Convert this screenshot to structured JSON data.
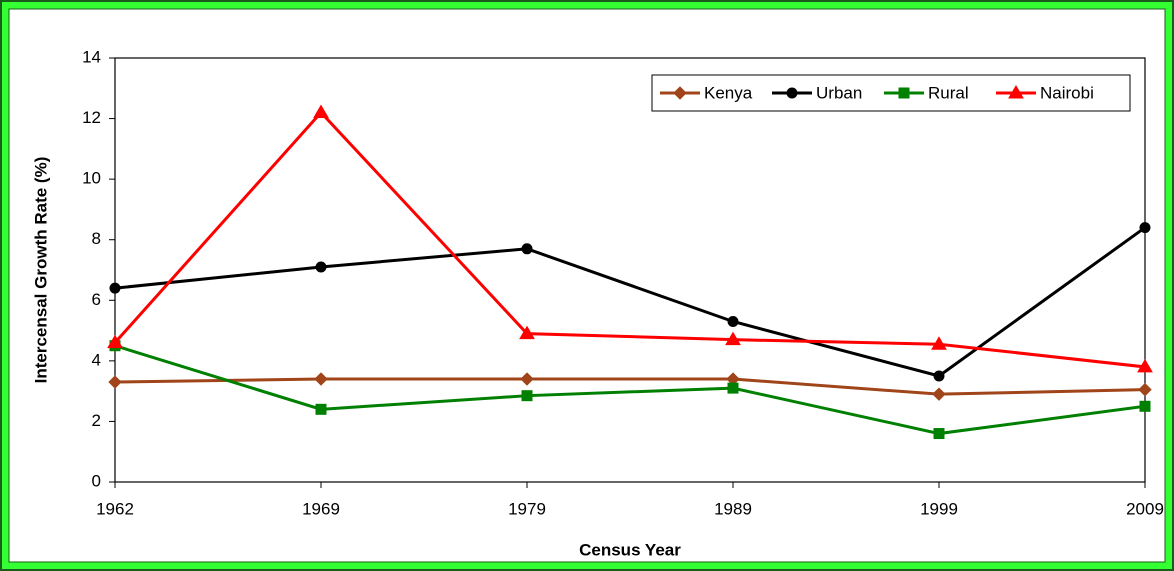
{
  "chart_data": {
    "type": "line",
    "x_label": "Census Year",
    "y_label": "Intercensal Growth Rate (%)",
    "categories": [
      "1962",
      "1969",
      "1979",
      "1989",
      "1999",
      "2009"
    ],
    "series": [
      {
        "name": "Kenya",
        "color": "#a0441a",
        "marker": "diamond",
        "values": [
          3.3,
          3.4,
          3.4,
          3.4,
          2.9,
          3.05
        ]
      },
      {
        "name": "Urban",
        "color": "#000000",
        "marker": "circle",
        "values": [
          6.4,
          7.1,
          7.7,
          5.3,
          3.5,
          8.4
        ]
      },
      {
        "name": "Rural",
        "color": "#008000",
        "marker": "square",
        "values": [
          4.5,
          2.4,
          2.85,
          3.1,
          1.6,
          2.5
        ]
      },
      {
        "name": "Nairobi",
        "color": "#ff0000",
        "marker": "triangle",
        "values": [
          4.6,
          12.2,
          4.9,
          4.7,
          4.55,
          3.8
        ]
      }
    ],
    "ylim": [
      0,
      14
    ],
    "yticks": [
      0,
      2,
      4,
      6,
      8,
      10,
      12,
      14
    ],
    "grid": false,
    "legend": "upper right"
  }
}
